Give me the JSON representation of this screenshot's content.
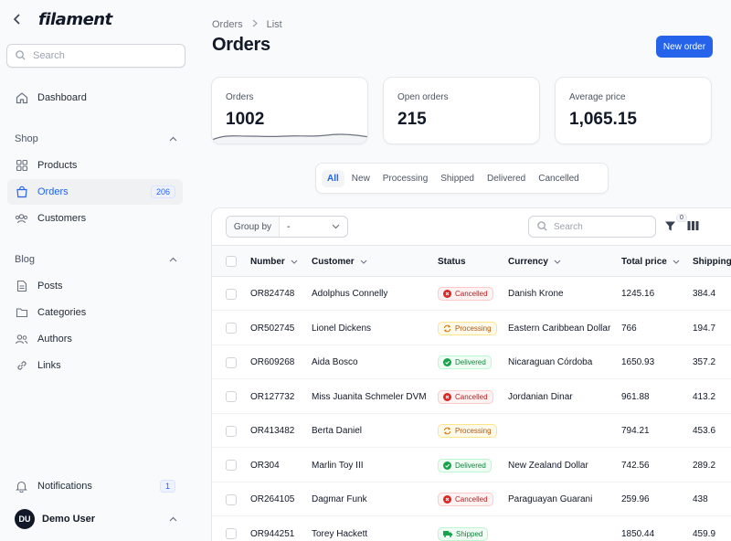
{
  "app": {
    "name": "filament"
  },
  "sidebar": {
    "search_placeholder": "Search",
    "dashboard": "Dashboard",
    "groups": [
      {
        "label": "Shop",
        "items": [
          {
            "label": "Products"
          },
          {
            "label": "Orders",
            "badge": "206",
            "active": true
          },
          {
            "label": "Customers"
          }
        ]
      },
      {
        "label": "Blog",
        "items": [
          {
            "label": "Posts"
          },
          {
            "label": "Categories"
          },
          {
            "label": "Authors"
          },
          {
            "label": "Links"
          }
        ]
      }
    ],
    "notifications": {
      "label": "Notifications",
      "badge": "1"
    },
    "user": {
      "initials": "DU",
      "name": "Demo User"
    }
  },
  "breadcrumb": [
    "Orders",
    "List"
  ],
  "page": {
    "title": "Orders",
    "new_button": "New order"
  },
  "stats": [
    {
      "label": "Orders",
      "value": "1002"
    },
    {
      "label": "Open orders",
      "value": "215"
    },
    {
      "label": "Average price",
      "value": "1,065.15"
    }
  ],
  "tabs": [
    "All",
    "New",
    "Processing",
    "Shipped",
    "Delivered",
    "Cancelled"
  ],
  "toolbar": {
    "group_by_label": "Group by",
    "group_by_value": "-",
    "search_placeholder": "Search",
    "filter_count": "0"
  },
  "table": {
    "columns": [
      "Number",
      "Customer",
      "Status",
      "Currency",
      "Total price",
      "Shipping cost"
    ],
    "rows": [
      {
        "number": "OR824748",
        "customer": "Adolphus Connelly",
        "status": "Cancelled",
        "currency": "Danish Krone",
        "total": "1245.16",
        "shipping": "384.4"
      },
      {
        "number": "OR502745",
        "customer": "Lionel Dickens",
        "status": "Processing",
        "currency": "Eastern Caribbean Dollar",
        "total": "766",
        "shipping": "194.7"
      },
      {
        "number": "OR609268",
        "customer": "Aida Bosco",
        "status": "Delivered",
        "currency": "Nicaraguan Córdoba",
        "total": "1650.93",
        "shipping": "357.2"
      },
      {
        "number": "OR127732",
        "customer": "Miss Juanita Schmeler DVM",
        "status": "Cancelled",
        "currency": "Jordanian Dinar",
        "total": "961.88",
        "shipping": "413.2"
      },
      {
        "number": "OR413482",
        "customer": "Berta Daniel",
        "status": "Processing",
        "currency": "",
        "total": "794.21",
        "shipping": "453.6"
      },
      {
        "number": "OR304",
        "customer": "Marlin Toy III",
        "status": "Delivered",
        "currency": "New Zealand Dollar",
        "total": "742.56",
        "shipping": "289.2"
      },
      {
        "number": "OR264105",
        "customer": "Dagmar Funk",
        "status": "Cancelled",
        "currency": "Paraguayan Guarani",
        "total": "259.96",
        "shipping": "438"
      },
      {
        "number": "OR944251",
        "customer": "Torey Hackett",
        "status": "Shipped",
        "currency": "",
        "total": "1850.44",
        "shipping": "459.9"
      }
    ]
  },
  "colors": {
    "primary": "#2563eb",
    "cancelled": "#dc2626",
    "processing": "#d97706",
    "delivered": "#16a34a"
  }
}
